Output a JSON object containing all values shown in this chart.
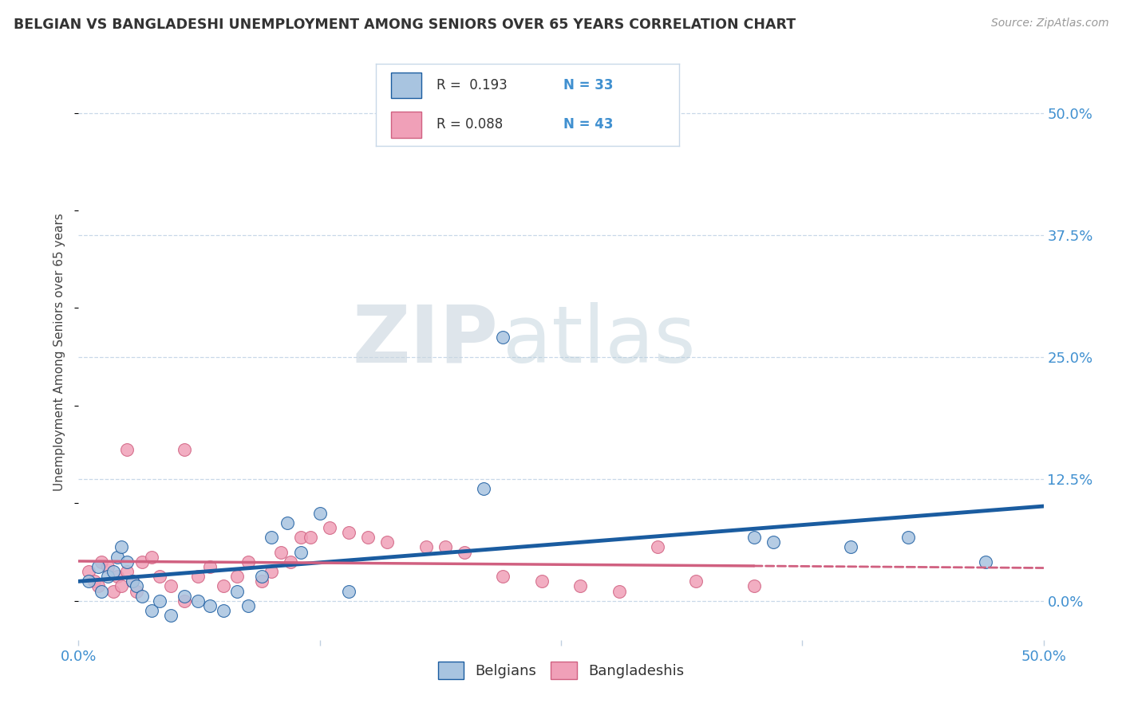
{
  "title": "BELGIAN VS BANGLADESHI UNEMPLOYMENT AMONG SENIORS OVER 65 YEARS CORRELATION CHART",
  "source": "Source: ZipAtlas.com",
  "ylabel": "Unemployment Among Seniors over 65 years",
  "xlim": [
    0.0,
    0.5
  ],
  "ylim": [
    -0.04,
    0.55
  ],
  "xticks": [
    0.0,
    0.125,
    0.25,
    0.375,
    0.5
  ],
  "xtick_labels": [
    "0.0%",
    "",
    "",
    "",
    "50.0%"
  ],
  "ytick_labels_right": [
    "0.0%",
    "12.5%",
    "25.0%",
    "37.5%",
    "50.0%"
  ],
  "yticks_right": [
    0.0,
    0.125,
    0.25,
    0.375,
    0.5
  ],
  "belgian_color": "#a8c4e0",
  "bangladeshi_color": "#f0a0b8",
  "belgian_line_color": "#1a5ca0",
  "bangladeshi_line_color": "#d06080",
  "belgians_scatter_x": [
    0.005,
    0.01,
    0.012,
    0.015,
    0.018,
    0.02,
    0.022,
    0.025,
    0.028,
    0.03,
    0.033,
    0.038,
    0.042,
    0.048,
    0.055,
    0.062,
    0.068,
    0.075,
    0.082,
    0.088,
    0.095,
    0.1,
    0.108,
    0.115,
    0.125,
    0.14,
    0.21,
    0.35,
    0.36,
    0.4,
    0.43,
    0.47,
    0.22
  ],
  "belgians_scatter_y": [
    0.02,
    0.035,
    0.01,
    0.025,
    0.03,
    0.045,
    0.055,
    0.04,
    0.02,
    0.015,
    0.005,
    -0.01,
    0.0,
    -0.015,
    0.005,
    0.0,
    -0.005,
    -0.01,
    0.01,
    -0.005,
    0.025,
    0.065,
    0.08,
    0.05,
    0.09,
    0.01,
    0.115,
    0.065,
    0.06,
    0.055,
    0.065,
    0.04,
    0.27
  ],
  "bangladeshis_scatter_x": [
    0.005,
    0.008,
    0.01,
    0.012,
    0.015,
    0.018,
    0.02,
    0.022,
    0.025,
    0.028,
    0.03,
    0.033,
    0.038,
    0.042,
    0.048,
    0.055,
    0.062,
    0.068,
    0.075,
    0.082,
    0.088,
    0.095,
    0.1,
    0.105,
    0.11,
    0.115,
    0.12,
    0.13,
    0.14,
    0.15,
    0.16,
    0.18,
    0.2,
    0.22,
    0.24,
    0.26,
    0.28,
    0.3,
    0.32,
    0.35,
    0.025,
    0.055,
    0.19
  ],
  "bangladeshis_scatter_y": [
    0.03,
    0.02,
    0.015,
    0.04,
    0.035,
    0.01,
    0.025,
    0.015,
    0.03,
    0.02,
    0.01,
    0.04,
    0.045,
    0.025,
    0.015,
    0.0,
    0.025,
    0.035,
    0.015,
    0.025,
    0.04,
    0.02,
    0.03,
    0.05,
    0.04,
    0.065,
    0.065,
    0.075,
    0.07,
    0.065,
    0.06,
    0.055,
    0.05,
    0.025,
    0.02,
    0.015,
    0.01,
    0.055,
    0.02,
    0.015,
    0.155,
    0.155,
    0.055
  ],
  "watermark_zip": "ZIP",
  "watermark_atlas": "atlas",
  "background_color": "#ffffff",
  "grid_color": "#c8d8e8",
  "figsize": [
    14.06,
    8.92
  ],
  "dpi": 100
}
